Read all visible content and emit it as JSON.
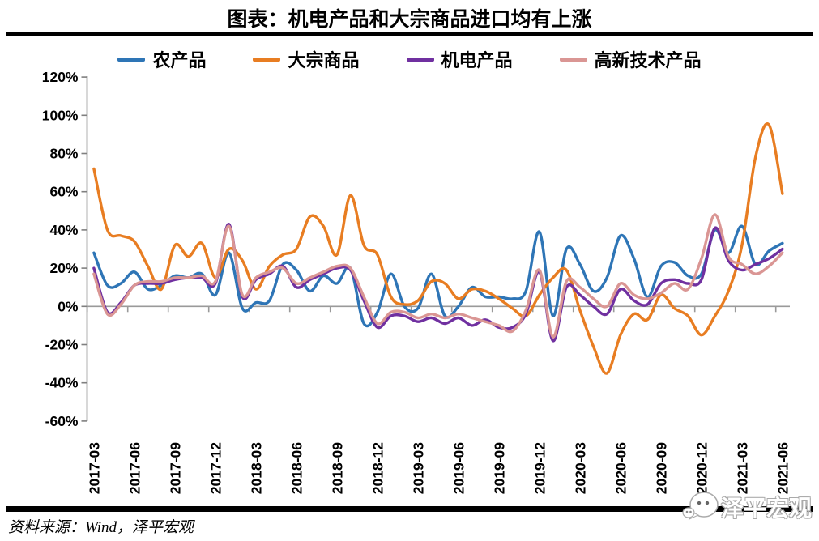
{
  "header": {
    "title": "图表：机电产品和大宗商品进口均有上涨"
  },
  "footer": {
    "source": "资料来源：Wind，泽平宏观",
    "watermark": "泽平宏观"
  },
  "chart_data": {
    "type": "line",
    "title": "图表：机电产品和大宗商品进口均有上涨",
    "xlabel": "",
    "ylabel": "",
    "ylim": [
      -60,
      120
    ],
    "y_ticks": [
      120,
      100,
      80,
      60,
      40,
      20,
      0,
      -20,
      -40,
      -60
    ],
    "y_tick_suffix": "%",
    "grid": false,
    "legend_position": "top",
    "x": [
      "2017-03",
      "2017-04",
      "2017-05",
      "2017-06",
      "2017-07",
      "2017-08",
      "2017-09",
      "2017-10",
      "2017-11",
      "2017-12",
      "2018-01",
      "2018-02",
      "2018-03",
      "2018-04",
      "2018-05",
      "2018-06",
      "2018-07",
      "2018-08",
      "2018-09",
      "2018-10",
      "2018-11",
      "2018-12",
      "2019-01",
      "2019-02",
      "2019-03",
      "2019-04",
      "2019-05",
      "2019-06",
      "2019-07",
      "2019-08",
      "2019-09",
      "2019-10",
      "2019-11",
      "2019-12",
      "2020-01",
      "2020-02",
      "2020-03",
      "2020-04",
      "2020-05",
      "2020-06",
      "2020-07",
      "2020-08",
      "2020-09",
      "2020-10",
      "2020-11",
      "2020-12",
      "2021-01",
      "2021-02",
      "2021-03",
      "2021-04",
      "2021-05",
      "2021-06"
    ],
    "x_tick_labels": [
      "2017-03",
      "2017-06",
      "2017-09",
      "2017-12",
      "2018-03",
      "2018-06",
      "2018-09",
      "2018-12",
      "2019-03",
      "2019-06",
      "2019-09",
      "2019-12",
      "2020-03",
      "2020-06",
      "2020-09",
      "2020-12",
      "2021-03",
      "2021-06"
    ],
    "series": [
      {
        "name": "农产品",
        "color": "#2E75B6",
        "values": [
          28,
          11,
          12,
          18,
          9,
          11,
          16,
          15,
          17,
          6,
          28,
          -1,
          2,
          3,
          22,
          19,
          8,
          16,
          12,
          20,
          -9,
          -3,
          17,
          0,
          -1,
          17,
          -5,
          0,
          10,
          5,
          5,
          4,
          8,
          39,
          -5,
          30,
          22,
          8,
          15,
          37,
          25,
          5,
          21,
          23,
          16,
          17,
          40,
          28,
          42,
          22,
          29,
          33
        ]
      },
      {
        "name": "大宗商品",
        "color": "#E87D22",
        "values": [
          72,
          40,
          37,
          34,
          21,
          9,
          32,
          26,
          33,
          15,
          30,
          24,
          9,
          21,
          27,
          30,
          47,
          42,
          27,
          58,
          32,
          27,
          5,
          1,
          3,
          13,
          12,
          4,
          9,
          8,
          4,
          -1,
          -5,
          6,
          15,
          19,
          -2,
          -21,
          -35,
          -15,
          -4,
          -7,
          6,
          -1,
          -5,
          -15,
          -5,
          8,
          32,
          78,
          95,
          59
        ]
      },
      {
        "name": "机电产品",
        "color": "#7030A0",
        "values": [
          20,
          -3,
          2,
          11,
          12,
          12,
          14,
          15,
          15,
          12,
          43,
          5,
          14,
          17,
          21,
          10,
          14,
          17,
          20,
          19,
          3,
          -11,
          -5,
          -5,
          -8,
          -6,
          -9,
          -6,
          -10,
          -7,
          -11,
          -11,
          -4,
          18,
          -18,
          10,
          6,
          0,
          -4,
          9,
          3,
          1,
          12,
          14,
          12,
          14,
          41,
          24,
          19,
          22,
          25,
          30
        ]
      },
      {
        "name": "高新技术产品",
        "color": "#DA9694",
        "values": [
          17,
          -4,
          1,
          11,
          13,
          13,
          15,
          15,
          16,
          13,
          42,
          6,
          15,
          18,
          20,
          12,
          15,
          18,
          21,
          20,
          5,
          -9,
          -3,
          -3,
          -6,
          -4,
          -6,
          -4,
          -6,
          -8,
          -10,
          -13,
          -2,
          19,
          -16,
          13,
          10,
          4,
          0,
          12,
          6,
          4,
          7,
          12,
          9,
          25,
          48,
          26,
          22,
          17,
          21,
          28
        ]
      }
    ]
  }
}
